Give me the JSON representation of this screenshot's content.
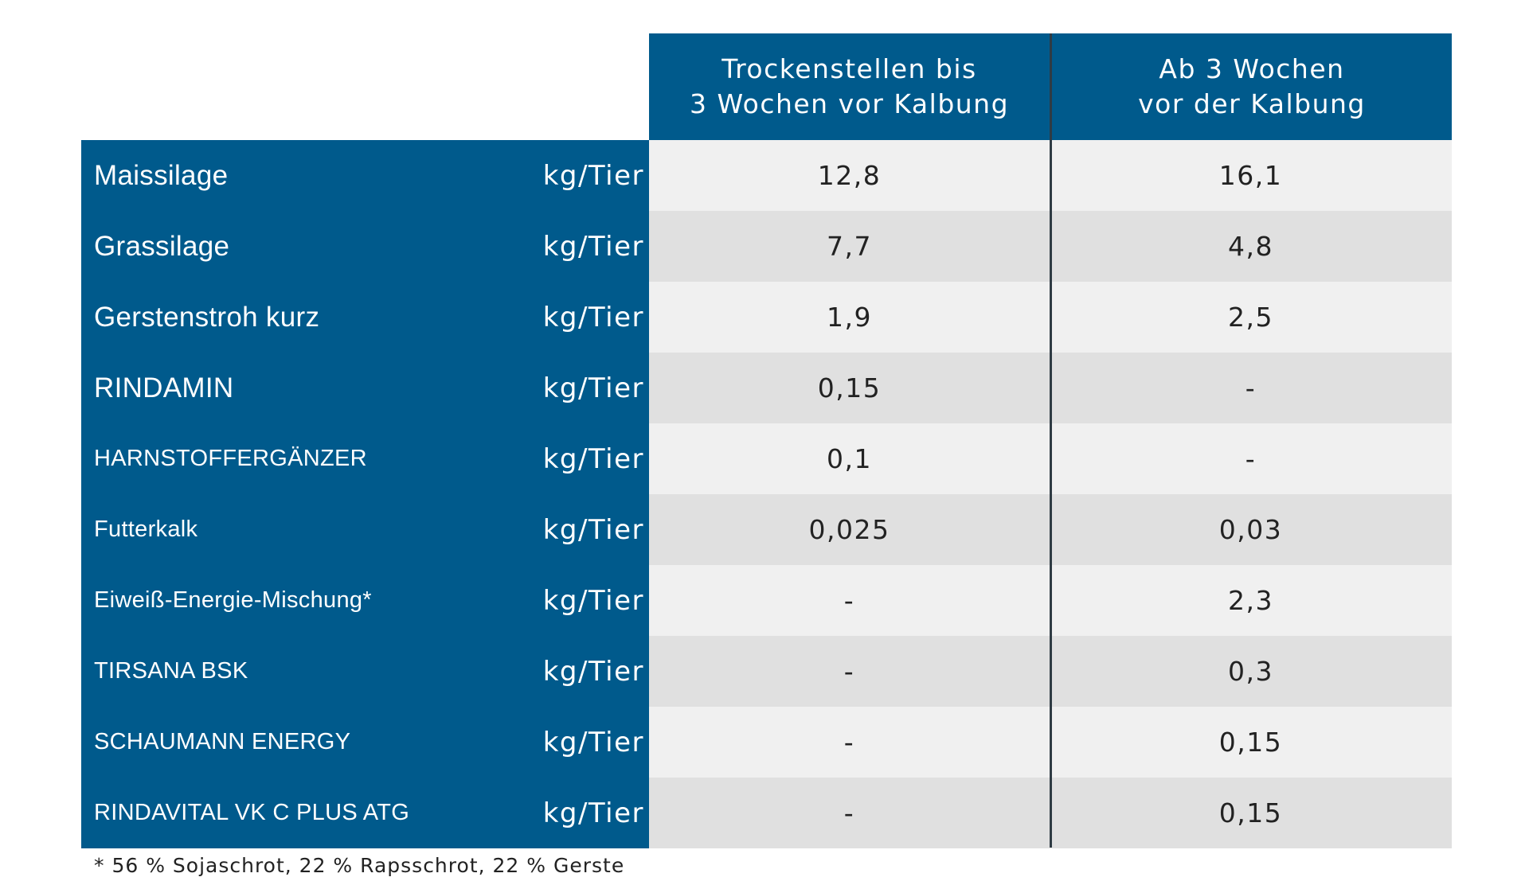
{
  "header": {
    "col1": "Trockenstellen bis\n3 Wochen vor Kalbung",
    "col2": "Ab 3 Wochen\nvor der Kalbung"
  },
  "rows": [
    {
      "label": "Maissilage",
      "unit": "kg/Tier",
      "v1": "12,8",
      "v2": "16,1"
    },
    {
      "label": "Grassilage",
      "unit": "kg/Tier",
      "v1": "7,7",
      "v2": "4,8"
    },
    {
      "label": "Gerstenstroh kurz",
      "unit": "kg/Tier",
      "v1": "1,9",
      "v2": "2,5"
    },
    {
      "label": "RINDAMIN",
      "unit": "kg/Tier",
      "v1": "0,15",
      "v2": "-"
    },
    {
      "label": "HARNSTOFFERGÄNZER",
      "unit": "kg/Tier",
      "v1": "0,1",
      "v2": "-"
    },
    {
      "label": "Futterkalk",
      "unit": "kg/Tier",
      "v1": "0,025",
      "v2": "0,03"
    },
    {
      "label": "Eiweiß-Energie-Mischung*",
      "unit": "kg/Tier",
      "v1": "-",
      "v2": "2,3"
    },
    {
      "label": "TIRSANA BSK",
      "unit": "kg/Tier",
      "v1": "-",
      "v2": "0,3"
    },
    {
      "label": "SCHAUMANN ENERGY",
      "unit": "kg/Tier",
      "v1": "-",
      "v2": "0,15"
    },
    {
      "label": "RINDAVITAL VK C PLUS ATG",
      "unit": "kg/Tier",
      "v1": "-",
      "v2": "0,15"
    }
  ],
  "footnote": "* 56 % Sojaschrot, 22 % Rapsschrot, 22 % Gerste",
  "colors": {
    "header_blue": "#005a8c",
    "row_light": "#f0f0f0",
    "row_dark": "#e0e0e0",
    "divider": "#2f3b44"
  }
}
